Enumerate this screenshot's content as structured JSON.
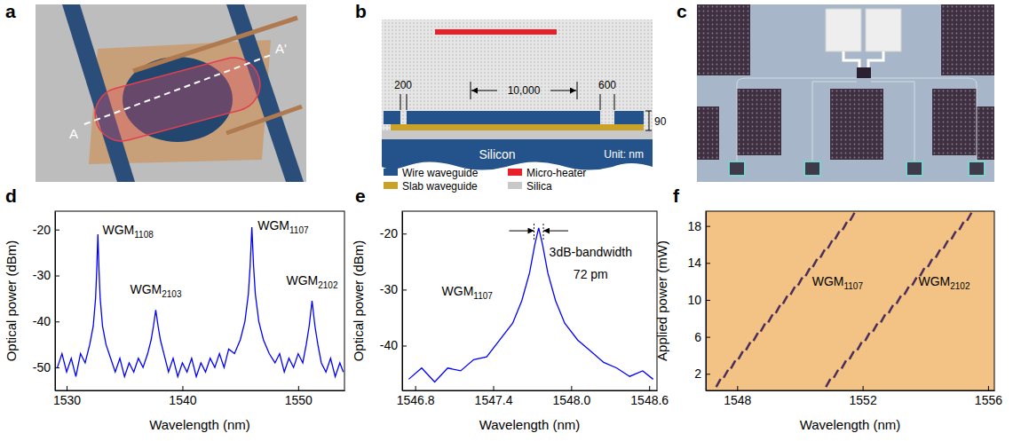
{
  "figure": {
    "a": {
      "panel_label": "a",
      "section_start": "A",
      "section_end": "A'"
    },
    "b": {
      "panel_label": "b",
      "dimensions": [
        "200",
        "10,000",
        "600",
        "90"
      ],
      "substrate": "Silicon",
      "unit": "Unit: nm",
      "legend": [
        {
          "label": "Wire waveguide",
          "color": "#24528a"
        },
        {
          "label": "Micro-heater",
          "color": "#e8202a"
        },
        {
          "label": "Slab waveguide",
          "color": "#c9a227"
        },
        {
          "label": "Silica",
          "color": "#c8c8c8"
        }
      ]
    },
    "c": {
      "panel_label": "c"
    }
  },
  "chart_data": [
    {
      "panel_label": "d",
      "type": "line",
      "x_label": "Wavelength (nm)",
      "y_label": "Optical power (dBm)",
      "xlim": [
        1529,
        1554
      ],
      "ylim": [
        -55,
        -16
      ],
      "xticks": [
        1530,
        1540,
        1550
      ],
      "yticks": [
        -50,
        -40,
        -30,
        -20
      ],
      "series": [
        {
          "color": "#0000ff",
          "x": [
            1529.2,
            1529.6,
            1530.0,
            1530.4,
            1530.8,
            1531.2,
            1531.6,
            1532.0,
            1532.3,
            1532.5,
            1532.6,
            1532.7,
            1532.8,
            1532.9,
            1533.1,
            1533.4,
            1533.8,
            1534.2,
            1534.6,
            1535.0,
            1535.4,
            1535.8,
            1536.2,
            1536.6,
            1537.0,
            1537.3,
            1537.5,
            1537.7,
            1537.9,
            1538.1,
            1538.4,
            1538.8,
            1539.2,
            1539.6,
            1540.0,
            1540.4,
            1540.8,
            1541.2,
            1541.6,
            1542.0,
            1542.4,
            1542.8,
            1543.2,
            1543.6,
            1544.0,
            1544.5,
            1545.0,
            1545.4,
            1545.7,
            1545.85,
            1546.0,
            1546.15,
            1546.3,
            1546.6,
            1547.0,
            1547.5,
            1548.0,
            1548.4,
            1548.8,
            1549.2,
            1549.6,
            1550.0,
            1550.4,
            1550.7,
            1550.95,
            1551.2,
            1551.45,
            1551.7,
            1552.0,
            1552.4,
            1552.8,
            1553.2,
            1553.6,
            1553.9
          ],
          "values": [
            -50,
            -47,
            -51,
            -48,
            -52,
            -47,
            -49,
            -45,
            -41,
            -35,
            -29,
            -21,
            -29,
            -35,
            -41,
            -45,
            -48,
            -51,
            -48,
            -52,
            -49,
            -51,
            -48,
            -50,
            -47,
            -44,
            -41,
            -37.5,
            -41,
            -44,
            -47,
            -51,
            -48,
            -52,
            -49,
            -51,
            -48,
            -52,
            -49,
            -51,
            -48,
            -50,
            -47,
            -50,
            -46,
            -47,
            -44,
            -40,
            -34,
            -28,
            -19.5,
            -28,
            -34,
            -40,
            -44,
            -47,
            -49,
            -47,
            -51,
            -48,
            -50,
            -47,
            -49,
            -45,
            -41,
            -35.5,
            -41,
            -45,
            -49,
            -51,
            -48,
            -52,
            -49,
            -51
          ]
        }
      ],
      "annotations": [
        {
          "text": "WGM",
          "subscript": "1108",
          "x": 1535.3,
          "y": -21
        },
        {
          "text": "WGM",
          "subscript": "2103",
          "x": 1537.7,
          "y": -34
        },
        {
          "text": "WGM",
          "subscript": "1107",
          "x": 1548.7,
          "y": -20
        },
        {
          "text": "WGM",
          "subscript": "2102",
          "x": 1551.2,
          "y": -32
        }
      ]
    },
    {
      "panel_label": "e",
      "type": "line",
      "x_label": "Wavelength (nm)",
      "y_label": "Optical power (dBm)",
      "xlim": [
        1546.7,
        1548.66
      ],
      "ylim": [
        -48,
        -16
      ],
      "xticks": [
        1546.8,
        1547.4,
        {
          "value": 1548,
          "label": "1548.0"
        },
        1548.6
      ],
      "yticks": [
        -40,
        -30,
        -20
      ],
      "series": [
        {
          "color": "#0000ff",
          "x": [
            1546.75,
            1546.85,
            1546.95,
            1547.05,
            1547.15,
            1547.25,
            1547.35,
            1547.45,
            1547.55,
            1547.62,
            1547.68,
            1547.72,
            1547.75,
            1547.78,
            1547.82,
            1547.88,
            1547.95,
            1548.05,
            1548.15,
            1548.25,
            1548.35,
            1548.45,
            1548.55,
            1548.63
          ],
          "values": [
            -46,
            -44,
            -46.5,
            -44,
            -44.5,
            -42.5,
            -42,
            -39,
            -36,
            -32,
            -27,
            -22,
            -19,
            -22,
            -27,
            -32,
            -36,
            -39,
            -41,
            -43,
            -44,
            -45.5,
            -44.5,
            -46
          ]
        }
      ],
      "bandwidth": {
        "x0": 1547.714,
        "x1": 1547.786,
        "y": -19.5
      },
      "annotations": [
        {
          "text": "WGM",
          "subscript": "1107",
          "x": 1547.2,
          "y": -31
        },
        {
          "text": "3dB-bandwidth",
          "x": 1548.15,
          "y": -24
        },
        {
          "text": "72 pm",
          "x": 1548.15,
          "y": -28
        }
      ]
    },
    {
      "panel_label": "f",
      "type": "scatter",
      "x_label": "Wavelength (nm)",
      "y_label": "Applied power (mW)",
      "xlim": [
        1547,
        1556.2
      ],
      "ylim": [
        0.2,
        19.6
      ],
      "xticks": [
        1548,
        1552,
        1556
      ],
      "yticks": [
        2,
        6,
        10,
        14,
        18
      ],
      "series": [
        {
          "color": "#4a2d5a",
          "marker": "dash",
          "x": [
            1547.4,
            1547.64,
            1547.87,
            1548.11,
            1548.35,
            1548.59,
            1548.82,
            1549.06,
            1549.3,
            1549.53,
            1549.77,
            1550.01,
            1550.25,
            1550.48,
            1550.72,
            1550.96,
            1551.19,
            1551.43,
            1551.67
          ],
          "values": [
            1,
            2,
            3,
            4,
            5,
            6,
            7,
            8,
            9,
            10,
            11,
            12,
            13,
            14,
            15,
            16,
            17,
            18,
            19
          ]
        },
        {
          "color": "#4a2d5a",
          "marker": "dash",
          "x": [
            1550.9,
            1551.15,
            1551.4,
            1551.65,
            1551.9,
            1552.15,
            1552.4,
            1552.65,
            1552.9,
            1553.15,
            1553.4,
            1553.65,
            1553.9,
            1554.15,
            1554.4,
            1554.65,
            1554.9,
            1555.15,
            1555.4
          ],
          "values": [
            1,
            2,
            3,
            4,
            5,
            6,
            7,
            8,
            9,
            10,
            11,
            12,
            13,
            14,
            15,
            16,
            17,
            18,
            19
          ]
        }
      ],
      "annotations": [
        {
          "text": "WGM",
          "subscript": "1107",
          "x": 1551.2,
          "y": 11.5
        },
        {
          "text": "WGM",
          "subscript": "2102",
          "x": 1554.6,
          "y": 11.5
        }
      ]
    }
  ]
}
